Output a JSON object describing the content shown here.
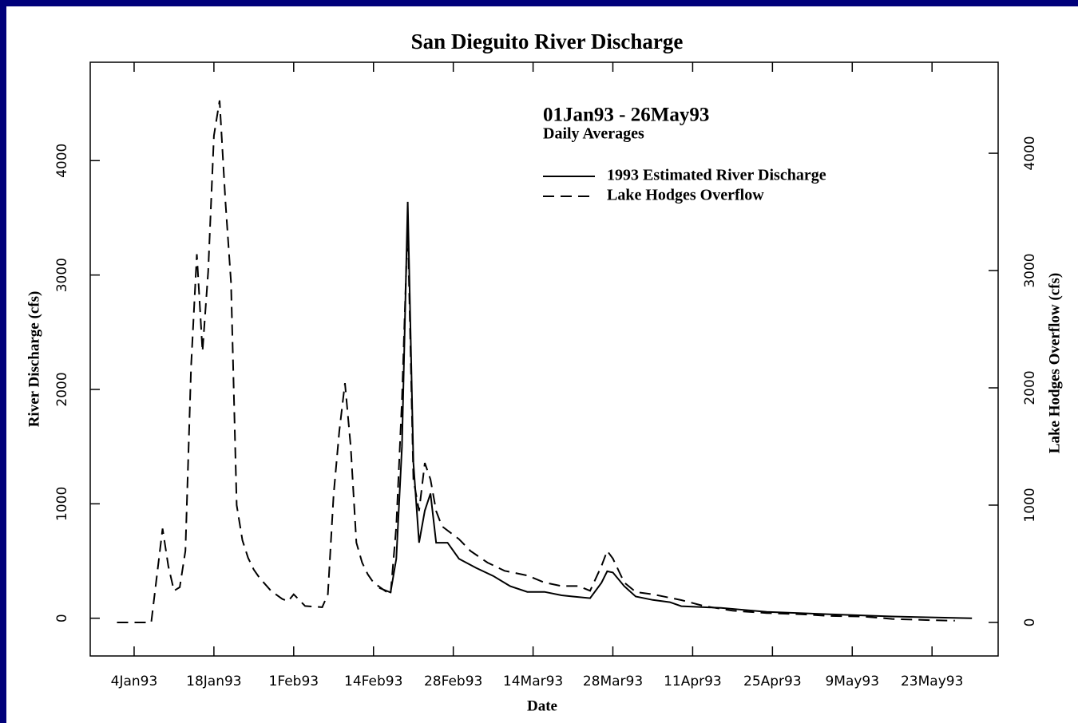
{
  "chart_data": {
    "type": "line",
    "title": "San Dieguito River Discharge",
    "annotations": [
      "01Jan93 - 26May93",
      "Daily Averages"
    ],
    "xlabel": "Date",
    "ylabel": "River Discharge (cfs)",
    "y2label": "Lake Hodges Overflow (cfs)",
    "xlim": [
      -3.7,
      155.6
    ],
    "xticks": [
      {
        "value": 4,
        "label": "4Jan93"
      },
      {
        "value": 18,
        "label": "18Jan93"
      },
      {
        "value": 32,
        "label": "1Feb93"
      },
      {
        "value": 46,
        "label": "14Feb93"
      },
      {
        "value": 60,
        "label": "28Feb93"
      },
      {
        "value": 74,
        "label": "14Mar93"
      },
      {
        "value": 88,
        "label": "28Mar93"
      },
      {
        "value": 102,
        "label": "11Apr93"
      },
      {
        "value": 116,
        "label": "25Apr93"
      },
      {
        "value": 130,
        "label": "9May93"
      },
      {
        "value": 144,
        "label": "23May93"
      }
    ],
    "ylim": [
      -330,
      4860
    ],
    "yticks": [
      0,
      1000,
      2000,
      3000,
      4000
    ],
    "y2lim": [
      -286,
      4776
    ],
    "y2ticks": [
      0,
      1000,
      2000,
      3000,
      4000
    ],
    "grid": false,
    "series": [
      {
        "name": "1993 Estimated River Discharge",
        "color": "#000000",
        "line_style": "solid",
        "axis": "y",
        "x": [
          47,
          49,
          50,
          51,
          52,
          53,
          54,
          55,
          56,
          57,
          59,
          61,
          64,
          67,
          70,
          73,
          76,
          79,
          81,
          84,
          86,
          87,
          88,
          90,
          92,
          95,
          98,
          100,
          107,
          115,
          126,
          137,
          151
        ],
        "values": [
          265,
          225,
          520,
          1500,
          3640,
          1360,
          660,
          940,
          1090,
          660,
          660,
          520,
          440,
          370,
          280,
          230,
          230,
          200,
          190,
          175,
          310,
          410,
          400,
          280,
          190,
          160,
          140,
          105,
          90,
          55,
          35,
          15,
          0
        ]
      },
      {
        "name": "Lake Hodges Overflow",
        "color": "#000000",
        "line_style": "dashed",
        "axis": "y2",
        "x": [
          1,
          7,
          8,
          9,
          10,
          11,
          12,
          13,
          14,
          15,
          16,
          17,
          18,
          19,
          20,
          21,
          22,
          23,
          24,
          25,
          26,
          28,
          30,
          31,
          32,
          34,
          37,
          38,
          39,
          40,
          41,
          42,
          43,
          44,
          45,
          46,
          48,
          49,
          50,
          51,
          52,
          53,
          54,
          55,
          56,
          57,
          58,
          61,
          63,
          66,
          69,
          73,
          76,
          79,
          82,
          84,
          86,
          87,
          88,
          90,
          92,
          95,
          100,
          104,
          109,
          115,
          121,
          126,
          132,
          137,
          143,
          148
        ],
        "values": [
          0,
          0,
          400,
          800,
          480,
          270,
          300,
          610,
          2180,
          3140,
          2310,
          2990,
          4150,
          4450,
          3600,
          2900,
          1000,
          700,
          550,
          450,
          380,
          270,
          200,
          180,
          240,
          140,
          130,
          240,
          1090,
          1630,
          2040,
          1500,
          680,
          510,
          410,
          340,
          270,
          240,
          820,
          1900,
          3400,
          1220,
          950,
          1360,
          1220,
          950,
          820,
          710,
          610,
          510,
          440,
          400,
          340,
          310,
          310,
          270,
          480,
          610,
          545,
          340,
          260,
          240,
          190,
          140,
          100,
          80,
          70,
          55,
          50,
          30,
          20,
          15
        ]
      }
    ]
  }
}
